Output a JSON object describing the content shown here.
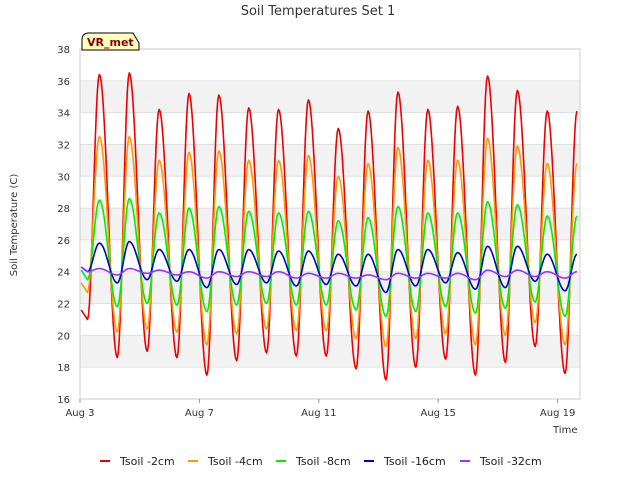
{
  "chart_data": {
    "type": "line",
    "title": "Soil Temperatures Set 1",
    "xlabel": "Time",
    "ylabel": "Soil Temperature (C)",
    "ylim": [
      16,
      38
    ],
    "yticks": [
      16,
      18,
      20,
      22,
      24,
      26,
      28,
      30,
      32,
      34,
      36,
      38
    ],
    "xlim": [
      "2023-08-03",
      "2023-08-19T18:00"
    ],
    "xticks": [
      {
        "date": "2023-08-03",
        "label": "Aug 3"
      },
      {
        "date": "2023-08-07",
        "label": "Aug 7"
      },
      {
        "date": "2023-08-11",
        "label": "Aug 11"
      },
      {
        "date": "2023-08-15",
        "label": "Aug 15"
      },
      {
        "date": "2023-08-19",
        "label": "Aug 19"
      }
    ],
    "grid": "alternating horizontal bands",
    "legend_position": "bottom",
    "badge": "VR_met",
    "cycle_peak_dates": [
      "2023-08-03",
      "2023-08-04",
      "2023-08-05",
      "2023-08-06",
      "2023-08-07",
      "2023-08-08",
      "2023-08-09",
      "2023-08-10",
      "2023-08-11",
      "2023-08-12",
      "2023-08-13",
      "2023-08-14",
      "2023-08-15",
      "2023-08-16",
      "2023-08-17",
      "2023-08-18",
      "2023-08-19"
    ],
    "series": [
      {
        "name": "Tsoil -2cm",
        "color": "#ee0000",
        "peaks": [
          null,
          36.4,
          36.5,
          34.2,
          35.2,
          35.1,
          34.3,
          34.2,
          34.8,
          33.0,
          34.1,
          35.3,
          34.2,
          34.4,
          36.3,
          35.4,
          34.1
        ],
        "troughs": [
          21.0,
          18.6,
          19.0,
          18.6,
          17.5,
          18.4,
          18.9,
          18.7,
          18.7,
          17.9,
          17.2,
          18.0,
          18.5,
          17.5,
          18.3,
          19.3,
          17.6
        ]
      },
      {
        "name": "Tsoil -4cm",
        "color": "#ff9900",
        "peaks": [
          null,
          32.5,
          32.5,
          31.0,
          31.5,
          31.6,
          31.0,
          31.0,
          31.3,
          30.0,
          30.8,
          31.8,
          31.0,
          31.0,
          32.4,
          31.9,
          30.8
        ],
        "troughs": [
          22.7,
          20.2,
          20.4,
          20.2,
          19.4,
          20.1,
          20.4,
          20.3,
          20.3,
          19.8,
          19.3,
          19.8,
          20.1,
          19.4,
          20.0,
          20.8,
          19.4
        ]
      },
      {
        "name": "Tsoil -8cm",
        "color": "#00ee00",
        "peaks": [
          null,
          28.5,
          28.6,
          27.7,
          28.0,
          28.1,
          27.8,
          27.7,
          27.8,
          27.2,
          27.4,
          28.1,
          27.7,
          27.7,
          28.4,
          28.2,
          27.5
        ],
        "troughs": [
          23.5,
          21.8,
          22.0,
          21.9,
          21.5,
          21.9,
          22.0,
          21.9,
          21.9,
          21.6,
          21.2,
          21.5,
          21.8,
          21.4,
          21.7,
          22.1,
          21.2
        ]
      },
      {
        "name": "Tsoil -16cm",
        "color": "#0000cc",
        "peaks": [
          24.8,
          25.8,
          25.9,
          25.4,
          25.4,
          25.4,
          25.4,
          25.3,
          25.3,
          25.1,
          25.1,
          25.4,
          25.4,
          25.2,
          25.6,
          25.6,
          25.1
        ],
        "troughs": [
          24.0,
          23.3,
          23.5,
          23.4,
          23.0,
          23.2,
          23.3,
          23.1,
          23.2,
          23.1,
          22.7,
          23.1,
          23.3,
          22.9,
          23.0,
          23.4,
          22.8
        ]
      },
      {
        "name": "Tsoil -32cm",
        "color": "#9933ff",
        "peaks": [
          24.2,
          24.2,
          24.2,
          24.1,
          24.0,
          24.0,
          24.0,
          24.0,
          23.9,
          23.9,
          23.8,
          23.9,
          23.9,
          23.9,
          24.1,
          24.1,
          24.0
        ],
        "troughs": [
          24.0,
          23.8,
          23.9,
          23.8,
          23.6,
          23.7,
          23.7,
          23.6,
          23.6,
          23.6,
          23.5,
          23.6,
          23.6,
          23.5,
          23.7,
          23.7,
          23.6
        ]
      }
    ]
  }
}
